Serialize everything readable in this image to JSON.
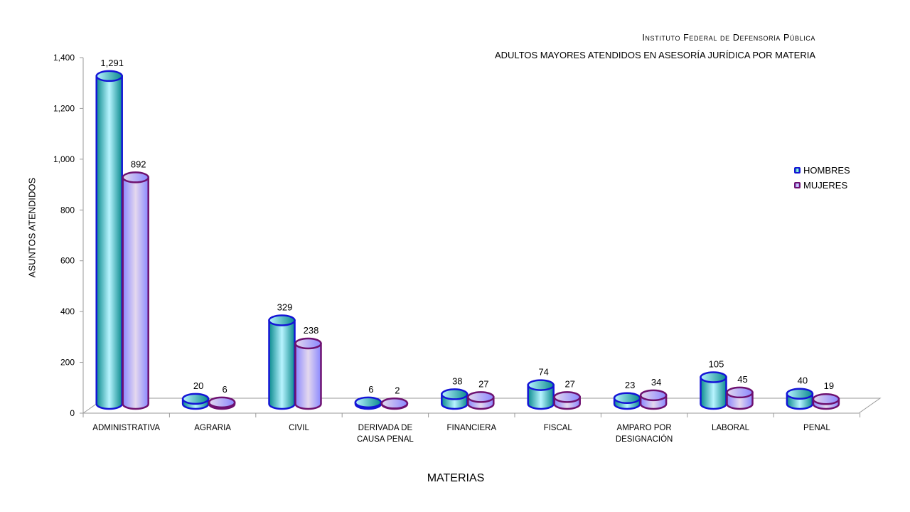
{
  "chart_data": {
    "type": "bar",
    "title": "Instituto Federal de Defensoría Pública",
    "subtitle": "ADULTOS MAYORES ATENDIDOS EN ASESORÍA JURÍDICA POR MATERIA",
    "xlabel": "MATERIAS",
    "ylabel": "ASUNTOS ATENDIDOS",
    "ylim": [
      0,
      1400
    ],
    "yticks": [
      0,
      200,
      400,
      600,
      800,
      1000,
      1200,
      1400
    ],
    "ytick_labels": [
      "0",
      "200",
      "400",
      "600",
      "800",
      "1,000",
      "1,200",
      "1,400"
    ],
    "categories": [
      [
        "ADMINISTRATIVA"
      ],
      [
        "AGRARIA"
      ],
      [
        "CIVIL"
      ],
      [
        "DERIVADA DE",
        "CAUSA PENAL"
      ],
      [
        "FINANCIERA"
      ],
      [
        "FISCAL"
      ],
      [
        "AMPARO POR",
        "DESIGNACIÓN"
      ],
      [
        "LABORAL"
      ],
      [
        "PENAL"
      ]
    ],
    "series": [
      {
        "name": "HOMBRES",
        "values": [
          1291,
          20,
          329,
          6,
          38,
          74,
          23,
          105,
          40
        ],
        "labels": [
          "1,291",
          "20",
          "329",
          "6",
          "38",
          "74",
          "23",
          "105",
          "40"
        ],
        "color_dark": "#0a8a8e",
        "color_light": "#b8f4ff",
        "outline": "#1414d6"
      },
      {
        "name": "MUJERES",
        "values": [
          892,
          6,
          238,
          2,
          27,
          27,
          34,
          45,
          19
        ],
        "labels": [
          "892",
          "6",
          "238",
          "2",
          "27",
          "27",
          "34",
          "45",
          "19"
        ],
        "color_dark": "#8a88ff",
        "color_light": "#e4d8ee",
        "outline": "#6e1170"
      }
    ],
    "legend_position": "right",
    "grid": false,
    "style": "3d-cylinder"
  }
}
